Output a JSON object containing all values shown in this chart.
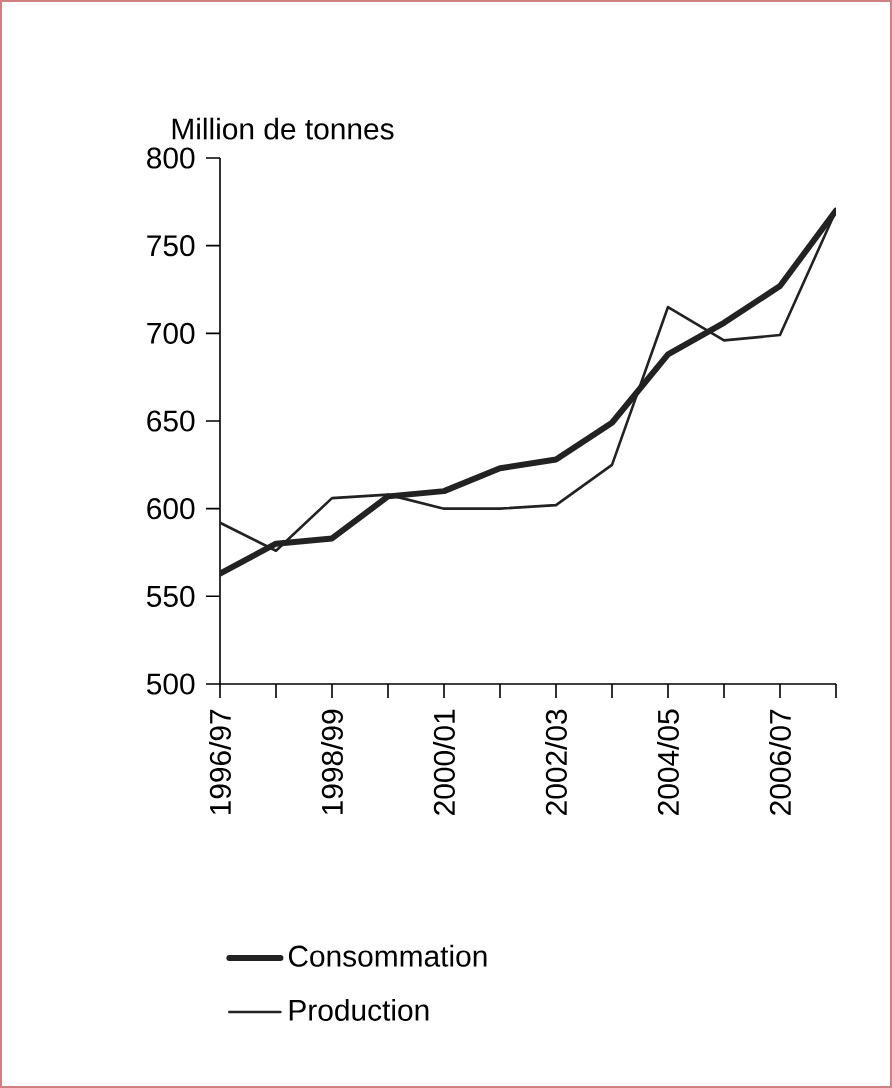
{
  "chart_data": {
    "type": "line",
    "ylabel": "Million de tonnes",
    "categories": [
      "1996/97",
      null,
      "1998/99",
      null,
      "2000/01",
      null,
      "2002/03",
      null,
      "2004/05",
      null,
      "2006/07",
      null
    ],
    "series": [
      {
        "name": "Consommation",
        "color": "#222222",
        "values": [
          563,
          580,
          583,
          607,
          610,
          623,
          628,
          649,
          688,
          706,
          727,
          770
        ]
      },
      {
        "name": "Production",
        "color": "#222222",
        "values": [
          592,
          576,
          606,
          608,
          600,
          600,
          602,
          625,
          715,
          696,
          699,
          770
        ]
      }
    ],
    "ylim": [
      500,
      800
    ],
    "yticks": [
      500,
      550,
      600,
      650,
      700,
      750,
      800
    ],
    "grid": false,
    "legend": "bottom",
    "marker": "none",
    "line_style": "solid"
  }
}
